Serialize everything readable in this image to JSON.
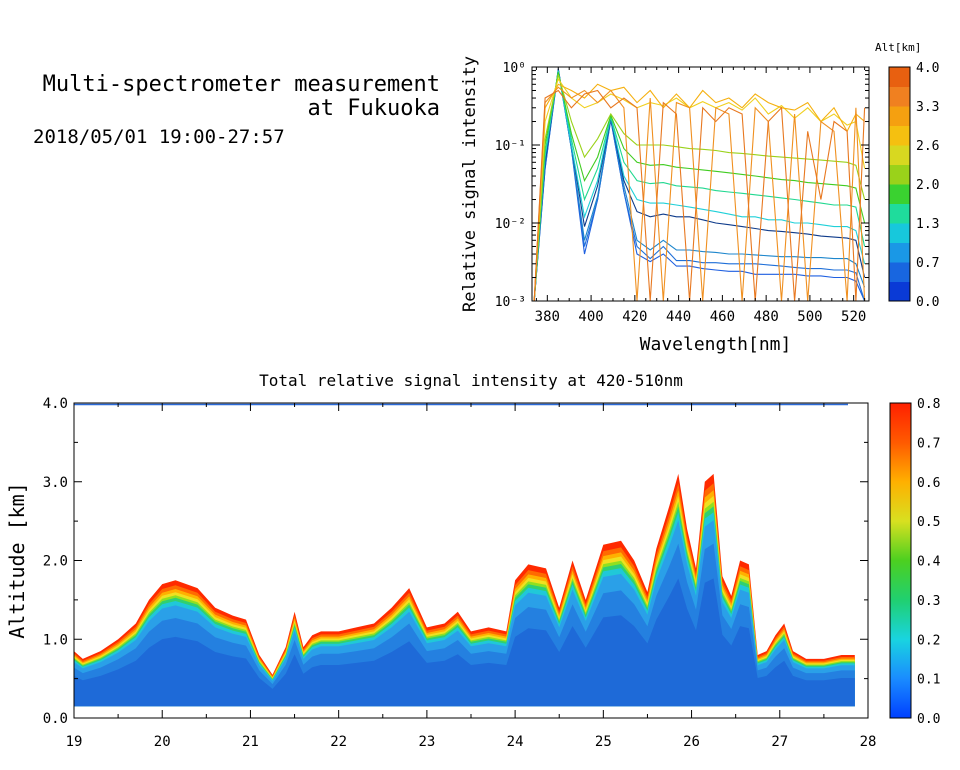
{
  "header": {
    "title_line1": "Multi-spectrometer measurement",
    "title_line2": "at Fukuoka",
    "date_range": "2018/05/01 19:00-27:57"
  },
  "chart_data": [
    {
      "type": "line",
      "xlabel": "Wavelength[nm]",
      "ylabel": "Relative signal intensity",
      "xlim": [
        373,
        527
      ],
      "ylim": [
        0.001,
        1
      ],
      "yscale": "log",
      "x_ticks": [
        "380",
        "400",
        "420",
        "440",
        "460",
        "480",
        "500",
        "520"
      ],
      "y_ticks": [
        "10⁻³",
        "10⁻²",
        "10⁻¹",
        "10⁰"
      ],
      "colorbar": {
        "title": "Alt[km]",
        "ticks": [
          "0.0",
          "0.7",
          "1.3",
          "2.0",
          "2.6",
          "3.3",
          "4.0"
        ],
        "range": [
          0,
          4
        ]
      },
      "x": [
        374,
        379,
        385,
        391,
        397,
        403,
        409,
        415,
        421,
        427,
        433,
        439,
        445,
        451,
        457,
        463,
        469,
        475,
        481,
        487,
        493,
        499,
        505,
        511,
        517,
        521,
        525
      ],
      "series": [
        {
          "alt": 0.15,
          "color": "#1e5fe0",
          "values": [
            0.001,
            0.05,
            0.95,
            0.09,
            0.004,
            0.02,
            0.21,
            0.025,
            0.004,
            0.0032,
            0.004,
            0.0028,
            0.0028,
            0.0026,
            0.0025,
            0.0024,
            0.0024,
            0.0022,
            0.0022,
            0.0022,
            0.0022,
            0.0021,
            0.0021,
            0.002,
            0.002,
            0.0018,
            0.001
          ]
        },
        {
          "alt": 0.4,
          "color": "#1f6fd8",
          "values": [
            0.001,
            0.05,
            0.93,
            0.09,
            0.005,
            0.02,
            0.21,
            0.025,
            0.005,
            0.0035,
            0.005,
            0.0033,
            0.0033,
            0.0031,
            0.0031,
            0.003,
            0.003,
            0.003,
            0.0029,
            0.0028,
            0.0027,
            0.0026,
            0.0026,
            0.0025,
            0.0025,
            0.0023,
            0.001
          ]
        },
        {
          "alt": 0.8,
          "color": "#1d86cc",
          "values": [
            0.001,
            0.06,
            0.9,
            0.09,
            0.006,
            0.022,
            0.22,
            0.03,
            0.006,
            0.0045,
            0.006,
            0.0045,
            0.0045,
            0.0043,
            0.0042,
            0.004,
            0.004,
            0.0039,
            0.0038,
            0.0037,
            0.0037,
            0.0036,
            0.0036,
            0.0035,
            0.0035,
            0.003,
            0.0015
          ]
        },
        {
          "alt": 1.0,
          "color": "#0d3a8a",
          "values": [
            0.001,
            0.06,
            0.92,
            0.1,
            0.009,
            0.03,
            0.22,
            0.035,
            0.014,
            0.012,
            0.013,
            0.012,
            0.012,
            0.011,
            0.01,
            0.0095,
            0.009,
            0.0085,
            0.008,
            0.0078,
            0.0075,
            0.0072,
            0.0068,
            0.0066,
            0.0064,
            0.006,
            0.002
          ]
        },
        {
          "alt": 1.3,
          "color": "#1fd0d8",
          "values": [
            0.001,
            0.07,
            0.9,
            0.1,
            0.012,
            0.035,
            0.23,
            0.04,
            0.02,
            0.018,
            0.018,
            0.017,
            0.016,
            0.015,
            0.014,
            0.013,
            0.012,
            0.012,
            0.011,
            0.011,
            0.01,
            0.01,
            0.0095,
            0.009,
            0.009,
            0.008,
            0.003
          ]
        },
        {
          "alt": 1.7,
          "color": "#20d890",
          "values": [
            0.001,
            0.08,
            0.88,
            0.12,
            0.02,
            0.05,
            0.23,
            0.06,
            0.035,
            0.032,
            0.033,
            0.03,
            0.029,
            0.028,
            0.026,
            0.025,
            0.024,
            0.023,
            0.022,
            0.021,
            0.02,
            0.019,
            0.018,
            0.017,
            0.017,
            0.016,
            0.005
          ]
        },
        {
          "alt": 2.1,
          "color": "#40cc20",
          "values": [
            0.001,
            0.1,
            0.85,
            0.14,
            0.035,
            0.07,
            0.24,
            0.09,
            0.06,
            0.055,
            0.056,
            0.052,
            0.05,
            0.048,
            0.046,
            0.044,
            0.042,
            0.04,
            0.038,
            0.036,
            0.035,
            0.033,
            0.032,
            0.031,
            0.03,
            0.028,
            0.01
          ]
        },
        {
          "alt": 2.5,
          "color": "#9ad21a",
          "values": [
            0.001,
            0.12,
            0.8,
            0.2,
            0.07,
            0.12,
            0.25,
            0.14,
            0.1,
            0.1,
            0.1,
            0.095,
            0.09,
            0.088,
            0.085,
            0.08,
            0.078,
            0.075,
            0.072,
            0.07,
            0.068,
            0.066,
            0.064,
            0.062,
            0.06,
            0.055,
            0.02
          ]
        },
        {
          "alt": 3.0,
          "color": "#f0d020",
          "values": [
            0.001,
            0.2,
            0.7,
            0.4,
            0.3,
            0.35,
            0.45,
            0.38,
            0.3,
            0.35,
            0.32,
            0.4,
            0.3,
            0.36,
            0.3,
            0.35,
            0.28,
            0.4,
            0.25,
            0.32,
            0.22,
            0.3,
            0.2,
            0.25,
            0.18,
            0.2,
            0.05
          ]
        },
        {
          "alt": 3.4,
          "color": "#f5b010",
          "values": [
            0.001,
            0.3,
            0.6,
            0.5,
            0.4,
            0.6,
            0.5,
            0.55,
            0.35,
            0.5,
            0.3,
            0.45,
            0.3,
            0.5,
            0.35,
            0.4,
            0.3,
            0.45,
            0.35,
            0.3,
            0.28,
            0.35,
            0.2,
            0.3,
            0.15,
            0.25,
            0.2
          ]
        },
        {
          "alt": 3.7,
          "color": "#f09020",
          "values": [
            0.001,
            0.35,
            0.55,
            0.4,
            0.5,
            0.35,
            0.5,
            0.3,
            0.001,
            0.4,
            0.001,
            0.35,
            0.3,
            0.001,
            0.3,
            0.25,
            0.001,
            0.3,
            0.2,
            0.001,
            0.25,
            0.001,
            0.2,
            0.15,
            0.001,
            0.3,
            0.001
          ]
        },
        {
          "alt": 3.9,
          "color": "#e87820",
          "values": [
            0.001,
            0.4,
            0.5,
            0.3,
            0.45,
            0.5,
            0.3,
            0.4,
            0.3,
            0.001,
            0.35,
            0.25,
            0.001,
            0.3,
            0.2,
            0.3,
            0.25,
            0.001,
            0.2,
            0.3,
            0.001,
            0.15,
            0.02,
            0.2,
            0.15,
            0.001,
            0.3
          ]
        }
      ]
    },
    {
      "type": "heatmap",
      "title": "Total relative signal intensity at 420-510nm",
      "ylabel": "Altitude [km]",
      "xlim": [
        19,
        28
      ],
      "ylim": [
        0,
        4
      ],
      "x_ticks": [
        "19",
        "20",
        "21",
        "22",
        "23",
        "24",
        "25",
        "26",
        "27",
        "28"
      ],
      "y_ticks": [
        "0.0",
        "1.0",
        "2.0",
        "3.0",
        "4.0"
      ],
      "colorbar": {
        "ticks": [
          "0.0",
          "0.1",
          "0.2",
          "0.3",
          "0.4",
          "0.5",
          "0.6",
          "0.7",
          "0.8"
        ],
        "range": [
          0,
          0.8
        ]
      },
      "layer_bottom_km": 0.15,
      "layer_top_km": {
        "hours": [
          19.0,
          19.1,
          19.3,
          19.5,
          19.7,
          19.85,
          20.0,
          20.15,
          20.4,
          20.6,
          20.8,
          20.95,
          21.1,
          21.25,
          21.4,
          21.5,
          21.6,
          21.7,
          21.8,
          22.0,
          22.2,
          22.4,
          22.6,
          22.8,
          23.0,
          23.2,
          23.35,
          23.5,
          23.7,
          23.9,
          24.0,
          24.15,
          24.35,
          24.5,
          24.65,
          24.8,
          25.0,
          25.2,
          25.35,
          25.5,
          25.6,
          25.75,
          25.85,
          25.95,
          26.05,
          26.15,
          26.25,
          26.35,
          26.45,
          26.55,
          26.65,
          26.75,
          26.85,
          26.95,
          27.05,
          27.15,
          27.3,
          27.5,
          27.7,
          27.85
        ],
        "top_km": [
          0.85,
          0.75,
          0.85,
          1.0,
          1.2,
          1.5,
          1.7,
          1.75,
          1.65,
          1.4,
          1.3,
          1.25,
          0.8,
          0.55,
          0.9,
          1.35,
          0.9,
          1.05,
          1.1,
          1.1,
          1.15,
          1.2,
          1.4,
          1.65,
          1.15,
          1.2,
          1.35,
          1.1,
          1.15,
          1.1,
          1.75,
          1.95,
          1.9,
          1.4,
          2.0,
          1.5,
          2.2,
          2.25,
          2.0,
          1.6,
          2.15,
          2.7,
          3.1,
          2.4,
          1.9,
          3.0,
          3.1,
          1.8,
          1.55,
          2.0,
          1.95,
          0.8,
          0.85,
          1.05,
          1.2,
          0.85,
          0.75,
          0.75,
          0.8,
          0.8
        ]
      }
    }
  ]
}
